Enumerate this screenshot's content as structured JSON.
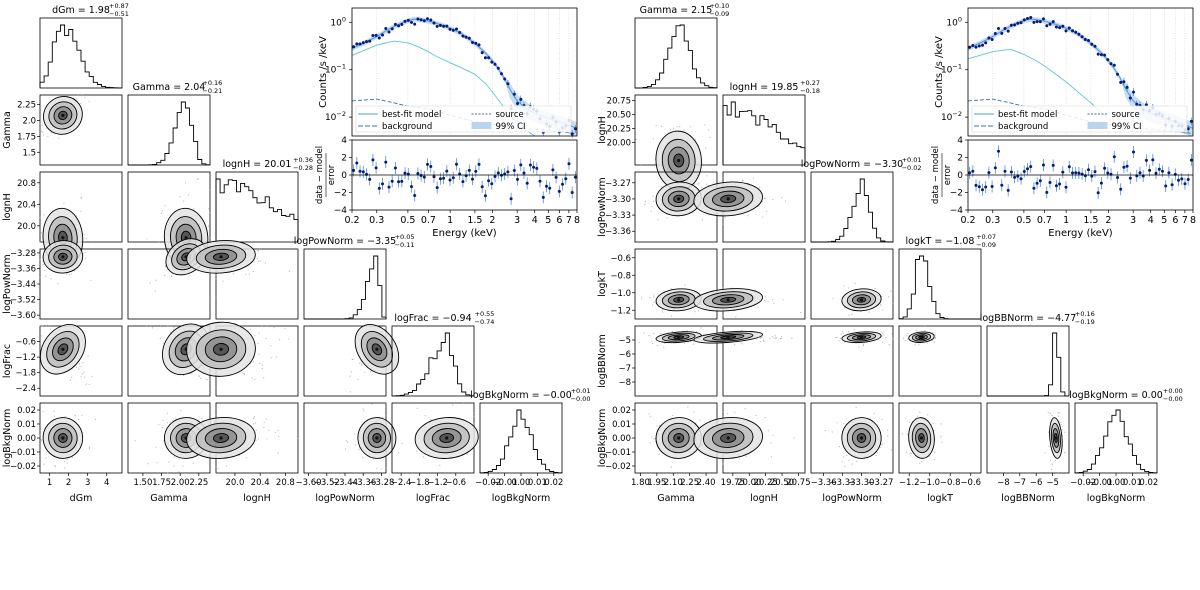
{
  "chart_data": [
    {
      "type": "corner",
      "name": "left-corner-plot",
      "params": [
        {
          "label": "dGm",
          "title": "dGm = 1.98",
          "sup": "+0.87",
          "sub": "−0.51",
          "range": [
            0.5,
            4.8
          ],
          "ticks": [
            {
              "v": 1,
              "t": "1"
            },
            {
              "v": 2,
              "t": "2"
            },
            {
              "v": 3,
              "t": "3"
            },
            {
              "v": 4,
              "t": "4"
            }
          ],
          "mode": 1.7,
          "width": 0.5,
          "skew": 1.6
        },
        {
          "label": "Gamma",
          "title": "Gamma = 2.04",
          "sup": "+0.16",
          "sub": "−0.21",
          "range": [
            1.3,
            2.4
          ],
          "ticks": [
            {
              "v": 1.5,
              "t": "1.50"
            },
            {
              "v": 1.75,
              "t": "1.75"
            },
            {
              "v": 2.0,
              "t": "2.00"
            },
            {
              "v": 2.25,
              "t": "2.25"
            }
          ],
          "yticks": [
            {
              "v": 1.5,
              "t": "1.5"
            },
            {
              "v": 1.75,
              "t": "1.75"
            },
            {
              "v": 2.0,
              "t": "2.0"
            },
            {
              "v": 2.25,
              "t": "2.25"
            }
          ],
          "mode": 2.08,
          "width": 0.14,
          "skew": 0.6
        },
        {
          "label": "lognH",
          "title": "lognH = 20.01",
          "sup": "+0.36",
          "sub": "−0.28",
          "range": [
            19.7,
            21.0
          ],
          "ticks": [
            {
              "v": 20.0,
              "t": "20.0"
            },
            {
              "v": 20.4,
              "t": "20.4"
            },
            {
              "v": 20.8,
              "t": "20.8"
            }
          ],
          "mode": 19.78,
          "width": 0.35,
          "skew": 2.5
        },
        {
          "label": "logPowNorm",
          "title": "logPowNorm = −3.35",
          "sup": "+0.05",
          "sub": "−0.11",
          "range": [
            -3.62,
            -3.26
          ],
          "ticks": [
            {
              "v": -3.6,
              "t": "−3.60"
            },
            {
              "v": -3.52,
              "t": "−3.52"
            },
            {
              "v": -3.44,
              "t": "−3.44"
            },
            {
              "v": -3.36,
              "t": "−3.36"
            },
            {
              "v": -3.28,
              "t": "−3.28"
            }
          ],
          "mode": -3.3,
          "width": 0.04,
          "skew": 0.3
        },
        {
          "label": "logFrac",
          "title": "logFrac = −0.94",
          "sup": "+0.55",
          "sub": "−0.74",
          "range": [
            -2.7,
            0.0
          ],
          "ticks": [
            {
              "v": -2.4,
              "t": "−2.4"
            },
            {
              "v": -1.8,
              "t": "−1.8"
            },
            {
              "v": -1.2,
              "t": "−1.2"
            },
            {
              "v": -0.6,
              "t": "−0.6"
            }
          ],
          "mode": -0.9,
          "width": 0.5,
          "skew": 0.5
        },
        {
          "label": "logBkgNorm",
          "title": "logBkgNorm = −0.00",
          "sup": "+0.01",
          "sub": "−0.00",
          "range": [
            -0.025,
            0.025
          ],
          "ticks": [
            {
              "v": -0.02,
              "t": "−0.02"
            },
            {
              "v": -0.01,
              "t": "−0.01"
            },
            {
              "v": 0.0,
              "t": "0.00"
            },
            {
              "v": 0.01,
              "t": "0.01"
            },
            {
              "v": 0.02,
              "t": "0.02"
            }
          ],
          "mode": 0.0,
          "width": 0.007,
          "skew": 1.0
        }
      ]
    },
    {
      "type": "corner",
      "name": "right-corner-plot",
      "params": [
        {
          "label": "Gamma",
          "title": "Gamma = 2.15",
          "sup": "+0.10",
          "sub": "−0.09",
          "range": [
            1.75,
            2.5
          ],
          "ticks": [
            {
              "v": 1.8,
              "t": "1.80"
            },
            {
              "v": 1.95,
              "t": "1.95"
            },
            {
              "v": 2.1,
              "t": "2.10"
            },
            {
              "v": 2.25,
              "t": "2.25"
            },
            {
              "v": 2.4,
              "t": "2.40"
            }
          ],
          "mode": 2.15,
          "width": 0.1,
          "skew": 1.0
        },
        {
          "label": "lognH",
          "title": "lognH = 19.85",
          "sup": "+0.27",
          "sub": "−0.18",
          "range": [
            19.6,
            20.85
          ],
          "ticks": [
            {
              "v": 19.75,
              "t": "19.75"
            },
            {
              "v": 20.0,
              "t": "20.00"
            },
            {
              "v": 20.25,
              "t": "20.25"
            },
            {
              "v": 20.5,
              "t": "20.50"
            },
            {
              "v": 20.75,
              "t": "20.75"
            }
          ],
          "yticks": [
            {
              "v": 20.0,
              "t": "20.00"
            },
            {
              "v": 20.25,
              "t": "20.25"
            },
            {
              "v": 20.5,
              "t": "20.50"
            },
            {
              "v": 20.75,
              "t": "20.75"
            }
          ],
          "mode": 19.68,
          "width": 0.3,
          "skew": 2.5
        },
        {
          "label": "logPowNorm",
          "title": "logPowNorm = −3.30",
          "sup": "+0.01",
          "sub": "−0.02",
          "range": [
            -3.38,
            -3.25
          ],
          "ticks": [
            {
              "v": -3.36,
              "t": "−3.36"
            },
            {
              "v": -3.33,
              "t": "−3.33"
            },
            {
              "v": -3.3,
              "t": "−3.30"
            },
            {
              "v": -3.27,
              "t": "−3.27"
            }
          ],
          "mode": -3.3,
          "width": 0.015,
          "skew": 0.8
        },
        {
          "label": "logkT",
          "title": "logkT = −1.08",
          "sup": "+0.07",
          "sub": "−0.09",
          "range": [
            -1.3,
            -0.5
          ],
          "ticks": [
            {
              "v": -1.2,
              "t": "−1.2"
            },
            {
              "v": -1.0,
              "t": "−1.0"
            },
            {
              "v": -0.8,
              "t": "−0.8"
            },
            {
              "v": -0.6,
              "t": "−0.6"
            }
          ],
          "mode": -1.08,
          "width": 0.06,
          "skew": 1.2
        },
        {
          "label": "logBBNorm",
          "title": "logBBNorm = −4.77",
          "sup": "+0.16",
          "sub": "−0.19",
          "range": [
            -9.0,
            -4.0
          ],
          "ticks": [
            {
              "v": -8,
              "t": "−8"
            },
            {
              "v": -7,
              "t": "−7"
            },
            {
              "v": -6,
              "t": "−6"
            },
            {
              "v": -5,
              "t": "−5"
            }
          ],
          "mode": -4.8,
          "width": 0.18,
          "skew": 1.0
        },
        {
          "label": "logBkgNorm",
          "title": "logBkgNorm = 0.00",
          "sup": "+0.00",
          "sub": "−0.00",
          "range": [
            -0.025,
            0.025
          ],
          "ticks": [
            {
              "v": -0.02,
              "t": "−0.02"
            },
            {
              "v": -0.01,
              "t": "−0.01"
            },
            {
              "v": 0.0,
              "t": "0.00"
            },
            {
              "v": 0.01,
              "t": "0.01"
            },
            {
              "v": 0.02,
              "t": "0.02"
            }
          ],
          "mode": 0.0,
          "width": 0.007,
          "skew": 1.0
        }
      ]
    },
    {
      "type": "spectrum",
      "name": "left-spectrum",
      "ylabel": "Counts /s /keV",
      "resid_ylabel": "data − model\nerror",
      "xlabel": "Energy (keV)",
      "xlim": [
        0.2,
        8
      ],
      "ylim": [
        0.004,
        2
      ],
      "resid_ylim": [
        -4,
        4
      ],
      "xticks": [
        {
          "v": 0.2,
          "t": "0.2"
        },
        {
          "v": 0.3,
          "t": "0.3"
        },
        {
          "v": 0.5,
          "t": "0.5"
        },
        {
          "v": 0.7,
          "t": "0.7"
        },
        {
          "v": 1,
          "t": "1"
        },
        {
          "v": 1.5,
          "t": "1.5"
        },
        {
          "v": 2,
          "t": "2"
        },
        {
          "v": 3,
          "t": "3"
        },
        {
          "v": 4,
          "t": "4"
        },
        {
          "v": 5,
          "t": "5"
        },
        {
          "v": 6,
          "t": "6"
        },
        {
          "v": 7,
          "t": "7"
        },
        {
          "v": 8,
          "t": "8"
        }
      ],
      "yticks": [
        {
          "v": 0.01,
          "t": "10",
          "e": "−2"
        },
        {
          "v": 0.1,
          "t": "10",
          "e": "−1"
        },
        {
          "v": 1,
          "t": "10",
          "e": "0"
        }
      ],
      "resid_yticks": [
        -4,
        -2,
        0,
        2,
        4
      ],
      "legend": [
        {
          "label": "best-fit model",
          "style": "solid"
        },
        {
          "label": "source",
          "style": "dotted"
        },
        {
          "label": "background",
          "style": "dashed"
        },
        {
          "label": "99% CI",
          "style": "band"
        }
      ],
      "model": [
        [
          0.2,
          0.28
        ],
        [
          0.25,
          0.38
        ],
        [
          0.3,
          0.5
        ],
        [
          0.35,
          0.66
        ],
        [
          0.4,
          0.82
        ],
        [
          0.45,
          0.96
        ],
        [
          0.5,
          1.08
        ],
        [
          0.55,
          1.16
        ],
        [
          0.6,
          1.15
        ],
        [
          0.7,
          1.06
        ],
        [
          0.8,
          0.95
        ],
        [
          0.9,
          0.85
        ],
        [
          1.0,
          0.75
        ],
        [
          1.2,
          0.58
        ],
        [
          1.5,
          0.36
        ],
        [
          1.8,
          0.22
        ],
        [
          2.1,
          0.13
        ],
        [
          2.4,
          0.07
        ],
        [
          2.7,
          0.036
        ],
        [
          3.0,
          0.022
        ],
        [
          3.5,
          0.015
        ],
        [
          4.0,
          0.012
        ],
        [
          5.0,
          0.0095
        ],
        [
          6.0,
          0.008
        ],
        [
          7.0,
          0.0068
        ],
        [
          8.0,
          0.0058
        ]
      ],
      "source": [
        [
          0.2,
          0.2
        ],
        [
          0.3,
          0.33
        ],
        [
          0.4,
          0.4
        ],
        [
          0.5,
          0.37
        ],
        [
          0.6,
          0.3
        ],
        [
          0.7,
          0.24
        ],
        [
          0.8,
          0.19
        ],
        [
          1.0,
          0.14
        ],
        [
          1.2,
          0.11
        ],
        [
          1.5,
          0.08
        ],
        [
          1.8,
          0.05
        ],
        [
          2.1,
          0.028
        ],
        [
          2.5,
          0.014
        ],
        [
          3.0,
          0.007
        ],
        [
          4.0,
          0.004
        ]
      ],
      "background": [
        [
          0.2,
          0.022
        ],
        [
          0.3,
          0.024
        ],
        [
          0.4,
          0.02
        ],
        [
          0.5,
          0.017
        ],
        [
          0.7,
          0.015
        ],
        [
          1.0,
          0.011
        ],
        [
          1.5,
          0.008
        ],
        [
          2.0,
          0.007
        ],
        [
          3.0,
          0.006
        ],
        [
          4.0,
          0.0055
        ],
        [
          6.0,
          0.005
        ],
        [
          8.0,
          0.0045
        ]
      ]
    },
    {
      "type": "spectrum",
      "name": "right-spectrum",
      "ylabel": "Counts /s /keV",
      "resid_ylabel": "data − model\nerror",
      "xlabel": "Energy (keV)",
      "xlim": [
        0.2,
        8
      ],
      "ylim": [
        0.004,
        2
      ],
      "resid_ylim": [
        -4,
        4
      ],
      "xticks": [
        {
          "v": 0.2,
          "t": "0.2"
        },
        {
          "v": 0.3,
          "t": "0.3"
        },
        {
          "v": 0.5,
          "t": "0.5"
        },
        {
          "v": 0.7,
          "t": "0.7"
        },
        {
          "v": 1,
          "t": "1"
        },
        {
          "v": 1.5,
          "t": "1.5"
        },
        {
          "v": 2,
          "t": "2"
        },
        {
          "v": 3,
          "t": "3"
        },
        {
          "v": 4,
          "t": "4"
        },
        {
          "v": 5,
          "t": "5"
        },
        {
          "v": 6,
          "t": "6"
        },
        {
          "v": 7,
          "t": "7"
        },
        {
          "v": 8,
          "t": "8"
        }
      ],
      "yticks": [
        {
          "v": 0.01,
          "t": "10",
          "e": "−2"
        },
        {
          "v": 0.1,
          "t": "10",
          "e": "−1"
        },
        {
          "v": 1,
          "t": "10",
          "e": "0"
        }
      ],
      "resid_yticks": [
        -4,
        -2,
        0,
        2,
        4
      ],
      "legend": [
        {
          "label": "best-fit model",
          "style": "solid"
        },
        {
          "label": "source",
          "style": "dotted"
        },
        {
          "label": "background",
          "style": "dashed"
        },
        {
          "label": "99% CI",
          "style": "band"
        }
      ],
      "model": [
        [
          0.2,
          0.28
        ],
        [
          0.25,
          0.38
        ],
        [
          0.3,
          0.5
        ],
        [
          0.35,
          0.66
        ],
        [
          0.4,
          0.82
        ],
        [
          0.45,
          0.96
        ],
        [
          0.5,
          1.08
        ],
        [
          0.55,
          1.16
        ],
        [
          0.6,
          1.15
        ],
        [
          0.7,
          1.06
        ],
        [
          0.8,
          0.95
        ],
        [
          0.9,
          0.85
        ],
        [
          1.0,
          0.75
        ],
        [
          1.2,
          0.58
        ],
        [
          1.5,
          0.36
        ],
        [
          1.8,
          0.22
        ],
        [
          2.1,
          0.13
        ],
        [
          2.4,
          0.07
        ],
        [
          2.7,
          0.036
        ],
        [
          3.0,
          0.022
        ],
        [
          3.5,
          0.015
        ],
        [
          4.0,
          0.012
        ],
        [
          5.0,
          0.0095
        ],
        [
          6.0,
          0.008
        ],
        [
          7.0,
          0.0068
        ],
        [
          8.0,
          0.0058
        ]
      ],
      "source": [
        [
          0.2,
          0.17
        ],
        [
          0.3,
          0.24
        ],
        [
          0.4,
          0.27
        ],
        [
          0.5,
          0.21
        ],
        [
          0.6,
          0.16
        ],
        [
          0.7,
          0.12
        ],
        [
          0.8,
          0.09
        ],
        [
          1.0,
          0.055
        ],
        [
          1.2,
          0.035
        ],
        [
          1.5,
          0.02
        ],
        [
          1.8,
          0.012
        ],
        [
          2.1,
          0.008
        ],
        [
          2.5,
          0.005
        ]
      ],
      "background": [
        [
          0.2,
          0.022
        ],
        [
          0.3,
          0.024
        ],
        [
          0.4,
          0.02
        ],
        [
          0.5,
          0.017
        ],
        [
          0.7,
          0.015
        ],
        [
          1.0,
          0.011
        ],
        [
          1.5,
          0.008
        ],
        [
          2.0,
          0.007
        ],
        [
          3.0,
          0.006
        ],
        [
          4.0,
          0.0055
        ],
        [
          6.0,
          0.005
        ],
        [
          8.0,
          0.0045
        ]
      ]
    }
  ],
  "colors": {
    "navy": "#0a1a7a",
    "model": "#5a9bd4",
    "source": "#5fc6da",
    "background": "#3a6fb0",
    "band": "#b9d4ee",
    "errbar": "#4f8fd0",
    "grid": "#c8c8c8"
  }
}
